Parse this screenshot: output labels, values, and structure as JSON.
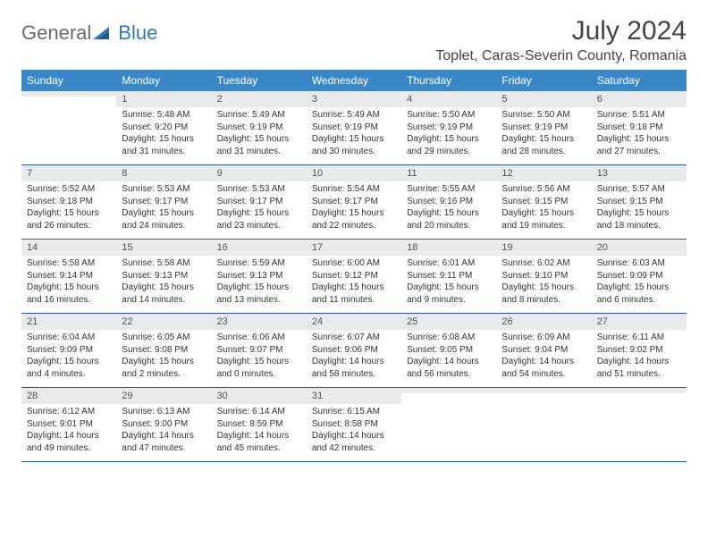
{
  "logo": {
    "general": "General",
    "blue": "Blue"
  },
  "title": "July 2024",
  "location": "Toplet, Caras-Severin County, Romania",
  "weekdays": [
    "Sunday",
    "Monday",
    "Tuesday",
    "Wednesday",
    "Thursday",
    "Friday",
    "Saturday"
  ],
  "colors": {
    "header_bg": "#3a87c8",
    "header_text": "#ffffff",
    "daynum_bg": "#e9eaeb",
    "border": "#2a5a8a",
    "logo_gray": "#6b6b6b",
    "logo_blue": "#2f78bd"
  },
  "weeks": [
    [
      {
        "n": "",
        "sunrise": "",
        "sunset": "",
        "daylight1": "",
        "daylight2": ""
      },
      {
        "n": "1",
        "sunrise": "Sunrise: 5:48 AM",
        "sunset": "Sunset: 9:20 PM",
        "daylight1": "Daylight: 15 hours",
        "daylight2": "and 31 minutes."
      },
      {
        "n": "2",
        "sunrise": "Sunrise: 5:49 AM",
        "sunset": "Sunset: 9:19 PM",
        "daylight1": "Daylight: 15 hours",
        "daylight2": "and 31 minutes."
      },
      {
        "n": "3",
        "sunrise": "Sunrise: 5:49 AM",
        "sunset": "Sunset: 9:19 PM",
        "daylight1": "Daylight: 15 hours",
        "daylight2": "and 30 minutes."
      },
      {
        "n": "4",
        "sunrise": "Sunrise: 5:50 AM",
        "sunset": "Sunset: 9:19 PM",
        "daylight1": "Daylight: 15 hours",
        "daylight2": "and 29 minutes."
      },
      {
        "n": "5",
        "sunrise": "Sunrise: 5:50 AM",
        "sunset": "Sunset: 9:19 PM",
        "daylight1": "Daylight: 15 hours",
        "daylight2": "and 28 minutes."
      },
      {
        "n": "6",
        "sunrise": "Sunrise: 5:51 AM",
        "sunset": "Sunset: 9:18 PM",
        "daylight1": "Daylight: 15 hours",
        "daylight2": "and 27 minutes."
      }
    ],
    [
      {
        "n": "7",
        "sunrise": "Sunrise: 5:52 AM",
        "sunset": "Sunset: 9:18 PM",
        "daylight1": "Daylight: 15 hours",
        "daylight2": "and 26 minutes."
      },
      {
        "n": "8",
        "sunrise": "Sunrise: 5:53 AM",
        "sunset": "Sunset: 9:17 PM",
        "daylight1": "Daylight: 15 hours",
        "daylight2": "and 24 minutes."
      },
      {
        "n": "9",
        "sunrise": "Sunrise: 5:53 AM",
        "sunset": "Sunset: 9:17 PM",
        "daylight1": "Daylight: 15 hours",
        "daylight2": "and 23 minutes."
      },
      {
        "n": "10",
        "sunrise": "Sunrise: 5:54 AM",
        "sunset": "Sunset: 9:17 PM",
        "daylight1": "Daylight: 15 hours",
        "daylight2": "and 22 minutes."
      },
      {
        "n": "11",
        "sunrise": "Sunrise: 5:55 AM",
        "sunset": "Sunset: 9:16 PM",
        "daylight1": "Daylight: 15 hours",
        "daylight2": "and 20 minutes."
      },
      {
        "n": "12",
        "sunrise": "Sunrise: 5:56 AM",
        "sunset": "Sunset: 9:15 PM",
        "daylight1": "Daylight: 15 hours",
        "daylight2": "and 19 minutes."
      },
      {
        "n": "13",
        "sunrise": "Sunrise: 5:57 AM",
        "sunset": "Sunset: 9:15 PM",
        "daylight1": "Daylight: 15 hours",
        "daylight2": "and 18 minutes."
      }
    ],
    [
      {
        "n": "14",
        "sunrise": "Sunrise: 5:58 AM",
        "sunset": "Sunset: 9:14 PM",
        "daylight1": "Daylight: 15 hours",
        "daylight2": "and 16 minutes."
      },
      {
        "n": "15",
        "sunrise": "Sunrise: 5:58 AM",
        "sunset": "Sunset: 9:13 PM",
        "daylight1": "Daylight: 15 hours",
        "daylight2": "and 14 minutes."
      },
      {
        "n": "16",
        "sunrise": "Sunrise: 5:59 AM",
        "sunset": "Sunset: 9:13 PM",
        "daylight1": "Daylight: 15 hours",
        "daylight2": "and 13 minutes."
      },
      {
        "n": "17",
        "sunrise": "Sunrise: 6:00 AM",
        "sunset": "Sunset: 9:12 PM",
        "daylight1": "Daylight: 15 hours",
        "daylight2": "and 11 minutes."
      },
      {
        "n": "18",
        "sunrise": "Sunrise: 6:01 AM",
        "sunset": "Sunset: 9:11 PM",
        "daylight1": "Daylight: 15 hours",
        "daylight2": "and 9 minutes."
      },
      {
        "n": "19",
        "sunrise": "Sunrise: 6:02 AM",
        "sunset": "Sunset: 9:10 PM",
        "daylight1": "Daylight: 15 hours",
        "daylight2": "and 8 minutes."
      },
      {
        "n": "20",
        "sunrise": "Sunrise: 6:03 AM",
        "sunset": "Sunset: 9:09 PM",
        "daylight1": "Daylight: 15 hours",
        "daylight2": "and 6 minutes."
      }
    ],
    [
      {
        "n": "21",
        "sunrise": "Sunrise: 6:04 AM",
        "sunset": "Sunset: 9:09 PM",
        "daylight1": "Daylight: 15 hours",
        "daylight2": "and 4 minutes."
      },
      {
        "n": "22",
        "sunrise": "Sunrise: 6:05 AM",
        "sunset": "Sunset: 9:08 PM",
        "daylight1": "Daylight: 15 hours",
        "daylight2": "and 2 minutes."
      },
      {
        "n": "23",
        "sunrise": "Sunrise: 6:06 AM",
        "sunset": "Sunset: 9:07 PM",
        "daylight1": "Daylight: 15 hours",
        "daylight2": "and 0 minutes."
      },
      {
        "n": "24",
        "sunrise": "Sunrise: 6:07 AM",
        "sunset": "Sunset: 9:06 PM",
        "daylight1": "Daylight: 14 hours",
        "daylight2": "and 58 minutes."
      },
      {
        "n": "25",
        "sunrise": "Sunrise: 6:08 AM",
        "sunset": "Sunset: 9:05 PM",
        "daylight1": "Daylight: 14 hours",
        "daylight2": "and 56 minutes."
      },
      {
        "n": "26",
        "sunrise": "Sunrise: 6:09 AM",
        "sunset": "Sunset: 9:04 PM",
        "daylight1": "Daylight: 14 hours",
        "daylight2": "and 54 minutes."
      },
      {
        "n": "27",
        "sunrise": "Sunrise: 6:11 AM",
        "sunset": "Sunset: 9:02 PM",
        "daylight1": "Daylight: 14 hours",
        "daylight2": "and 51 minutes."
      }
    ],
    [
      {
        "n": "28",
        "sunrise": "Sunrise: 6:12 AM",
        "sunset": "Sunset: 9:01 PM",
        "daylight1": "Daylight: 14 hours",
        "daylight2": "and 49 minutes."
      },
      {
        "n": "29",
        "sunrise": "Sunrise: 6:13 AM",
        "sunset": "Sunset: 9:00 PM",
        "daylight1": "Daylight: 14 hours",
        "daylight2": "and 47 minutes."
      },
      {
        "n": "30",
        "sunrise": "Sunrise: 6:14 AM",
        "sunset": "Sunset: 8:59 PM",
        "daylight1": "Daylight: 14 hours",
        "daylight2": "and 45 minutes."
      },
      {
        "n": "31",
        "sunrise": "Sunrise: 6:15 AM",
        "sunset": "Sunset: 8:58 PM",
        "daylight1": "Daylight: 14 hours",
        "daylight2": "and 42 minutes."
      },
      {
        "n": "",
        "sunrise": "",
        "sunset": "",
        "daylight1": "",
        "daylight2": ""
      },
      {
        "n": "",
        "sunrise": "",
        "sunset": "",
        "daylight1": "",
        "daylight2": ""
      },
      {
        "n": "",
        "sunrise": "",
        "sunset": "",
        "daylight1": "",
        "daylight2": ""
      }
    ]
  ]
}
